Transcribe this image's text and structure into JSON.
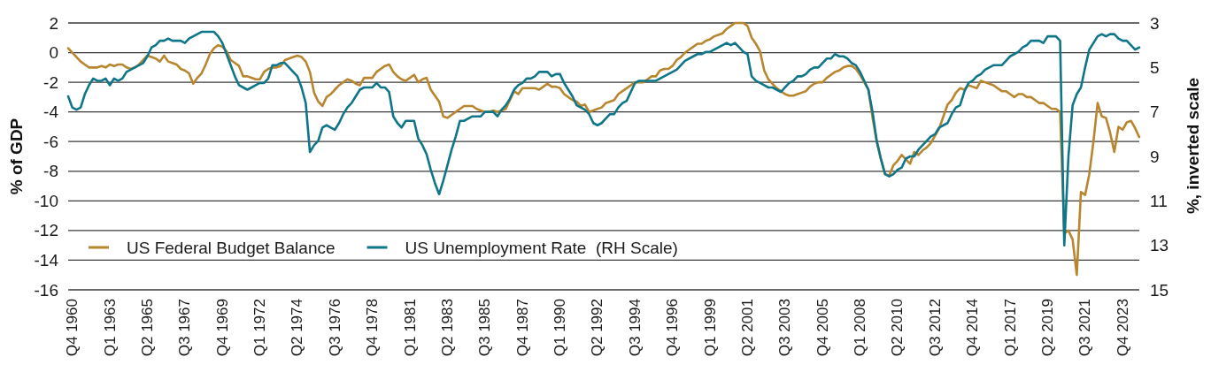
{
  "chart_data": {
    "type": "line",
    "ylabel": "% of GDP",
    "y2label": "%, inverted scale",
    "categories": [
      null,
      "Q4 1960",
      null,
      null,
      null,
      null,
      null,
      null,
      null,
      null,
      "Q1 1963",
      null,
      null,
      null,
      null,
      null,
      null,
      null,
      null,
      "Q2 1965",
      null,
      null,
      null,
      null,
      null,
      null,
      null,
      null,
      "Q3 1967",
      null,
      null,
      null,
      null,
      null,
      null,
      null,
      null,
      "Q4 1969",
      null,
      null,
      null,
      null,
      null,
      null,
      null,
      null,
      "Q1 1972",
      null,
      null,
      null,
      null,
      null,
      null,
      null,
      null,
      "Q2 1974",
      null,
      null,
      null,
      null,
      null,
      null,
      null,
      null,
      "Q3 1976",
      null,
      null,
      null,
      null,
      null,
      null,
      null,
      null,
      "Q4 1978",
      null,
      null,
      null,
      null,
      null,
      null,
      null,
      null,
      "Q1 1981",
      null,
      null,
      null,
      null,
      null,
      null,
      null,
      null,
      "Q2 1983",
      null,
      null,
      null,
      null,
      null,
      null,
      null,
      null,
      "Q3 1985",
      null,
      null,
      null,
      null,
      null,
      null,
      null,
      null,
      "Q4 1987",
      null,
      null,
      null,
      null,
      null,
      null,
      null,
      null,
      "Q1 1990",
      null,
      null,
      null,
      null,
      null,
      null,
      null,
      null,
      "Q2 1992",
      null,
      null,
      null,
      null,
      null,
      null,
      null,
      null,
      "Q3 1994",
      null,
      null,
      null,
      null,
      null,
      null,
      null,
      null,
      "Q4 1996",
      null,
      null,
      null,
      null,
      null,
      null,
      null,
      null,
      "Q1 1999",
      null,
      null,
      null,
      null,
      null,
      null,
      null,
      null,
      "Q2 2001",
      null,
      null,
      null,
      null,
      null,
      null,
      null,
      null,
      "Q3 2003",
      null,
      null,
      null,
      null,
      null,
      null,
      null,
      null,
      "Q4 2005",
      null,
      null,
      null,
      null,
      null,
      null,
      null,
      null,
      "Q1 2008",
      null,
      null,
      null,
      null,
      null,
      null,
      null,
      null,
      "Q2 2010",
      null,
      null,
      null,
      null,
      null,
      null,
      null,
      null,
      "Q3 2012",
      null,
      null,
      null,
      null,
      null,
      null,
      null,
      null,
      "Q4 2014",
      null,
      null,
      null,
      null,
      null,
      null,
      null,
      null,
      "Q1 2017",
      null,
      null,
      null,
      null,
      null,
      null,
      null,
      null,
      "Q2 2019",
      null,
      null,
      null,
      null,
      null,
      null,
      null,
      null,
      "Q3 2021",
      null,
      null,
      null,
      null,
      null,
      null,
      null,
      null,
      "Q4 2023",
      null,
      null,
      null,
      null
    ],
    "series": [
      {
        "name": "US Federal Budget Balance",
        "color": "#b8862f",
        "values": [
          0.3,
          0.0,
          -0.3,
          -0.6,
          -0.8,
          -1.0,
          -1.0,
          -1.0,
          -0.9,
          -1.0,
          -0.8,
          -0.9,
          -0.8,
          -0.8,
          -1.0,
          -1.1,
          -1.0,
          -0.8,
          -0.5,
          -0.2,
          -0.3,
          -0.4,
          -0.6,
          -0.2,
          -0.6,
          -0.7,
          -0.8,
          -1.1,
          -1.2,
          -1.4,
          -2.1,
          -1.7,
          -1.4,
          -0.8,
          -0.1,
          0.3,
          0.5,
          0.4,
          0.1,
          -0.5,
          -0.7,
          -0.9,
          -1.6,
          -1.6,
          -1.7,
          -1.8,
          -1.8,
          -1.3,
          -1.1,
          -1.0,
          -1.0,
          -0.9,
          -0.5,
          -0.4,
          -0.3,
          -0.2,
          -0.3,
          -0.6,
          -1.3,
          -2.7,
          -3.3,
          -3.6,
          -3.0,
          -2.8,
          -2.5,
          -2.2,
          -2.0,
          -1.8,
          -1.9,
          -2.1,
          -2.2,
          -1.7,
          -1.7,
          -1.7,
          -1.3,
          -1.1,
          -0.9,
          -0.8,
          -1.3,
          -1.6,
          -1.8,
          -1.9,
          -1.7,
          -1.5,
          -2.0,
          -1.8,
          -1.7,
          -2.5,
          -2.9,
          -3.3,
          -4.3,
          -4.4,
          -4.2,
          -4.0,
          -3.8,
          -3.6,
          -3.6,
          -3.6,
          -3.8,
          -3.9,
          -4.0,
          -4.0,
          -3.9,
          -4.0,
          -3.9,
          -3.8,
          -3.2,
          -2.6,
          -2.8,
          -2.4,
          -2.4,
          -2.4,
          -2.4,
          -2.5,
          -2.3,
          -2.1,
          -2.3,
          -2.3,
          -2.4,
          -2.8,
          -3.0,
          -3.2,
          -3.3,
          -3.6,
          -3.5,
          -4.0,
          -3.9,
          -3.8,
          -3.7,
          -3.4,
          -3.3,
          -3.2,
          -2.8,
          -2.6,
          -2.4,
          -2.2,
          -2.0,
          -2.0,
          -2.0,
          -1.8,
          -1.6,
          -1.6,
          -1.2,
          -1.1,
          -1.1,
          -0.9,
          -0.5,
          -0.3,
          0.0,
          0.2,
          0.4,
          0.6,
          0.6,
          0.8,
          0.9,
          1.1,
          1.2,
          1.3,
          1.6,
          1.8,
          2.0,
          2.0,
          2.0,
          1.8,
          1.0,
          0.6,
          0.1,
          -1.2,
          -1.8,
          -2.1,
          -2.4,
          -2.6,
          -2.8,
          -2.9,
          -2.9,
          -2.8,
          -2.7,
          -2.6,
          -2.3,
          -2.1,
          -2.0,
          -2.0,
          -1.7,
          -1.5,
          -1.3,
          -1.2,
          -1.0,
          -0.9,
          -0.9,
          -1.1,
          -1.5,
          -2.0,
          -2.5,
          -4.4,
          -6.0,
          -7.2,
          -8.2,
          -8.3,
          -7.6,
          -7.3,
          -6.9,
          -7.2,
          -7.5,
          -6.7,
          -6.9,
          -6.6,
          -6.4,
          -6.1,
          -5.6,
          -5.1,
          -4.3,
          -3.5,
          -3.2,
          -2.7,
          -2.4,
          -2.5,
          -2.2,
          -2.3,
          -2.4,
          -1.9,
          -2.0,
          -2.1,
          -2.2,
          -2.4,
          -2.6,
          -2.6,
          -2.8,
          -3.0,
          -2.8,
          -2.8,
          -3.0,
          -3.0,
          -3.2,
          -3.4,
          -3.4,
          -3.6,
          -3.8,
          -3.8,
          -4.0,
          -12.2,
          -12.0,
          -12.6,
          -15.0,
          -9.4,
          -9.6,
          -8.2,
          -6.0,
          -3.4,
          -4.3,
          -4.4,
          -5.4,
          -6.7,
          -5.0,
          -5.2,
          -4.7,
          -4.6,
          -5.1,
          -5.7
        ]
      },
      {
        "name": "US Unemployment Rate  (RH Scale)",
        "color": "#0f7689",
        "axis": "y2",
        "values": [
          6.3,
          6.8,
          6.9,
          6.8,
          6.2,
          5.8,
          5.5,
          5.6,
          5.6,
          5.5,
          5.8,
          5.5,
          5.6,
          5.5,
          5.2,
          5.1,
          5.0,
          4.9,
          4.8,
          4.5,
          4.1,
          4.0,
          3.8,
          3.8,
          3.7,
          3.8,
          3.8,
          3.8,
          3.9,
          3.7,
          3.6,
          3.5,
          3.4,
          3.4,
          3.4,
          3.4,
          3.6,
          3.9,
          4.4,
          4.9,
          5.4,
          5.8,
          5.9,
          6.0,
          5.9,
          5.8,
          5.7,
          5.7,
          5.5,
          4.9,
          4.9,
          4.8,
          4.8,
          5.0,
          5.2,
          5.4,
          5.9,
          6.6,
          8.8,
          8.5,
          8.3,
          7.7,
          7.6,
          7.7,
          7.8,
          7.5,
          7.1,
          6.8,
          6.6,
          6.3,
          6.0,
          5.9,
          5.9,
          5.9,
          5.7,
          5.9,
          5.9,
          6.1,
          7.2,
          7.5,
          7.7,
          7.4,
          7.4,
          7.4,
          8.2,
          8.5,
          8.9,
          9.6,
          10.2,
          10.7,
          10.1,
          9.4,
          8.7,
          8.1,
          7.4,
          7.4,
          7.3,
          7.2,
          7.2,
          7.2,
          7.0,
          7.0,
          7.0,
          7.2,
          6.9,
          6.7,
          6.4,
          6.0,
          5.8,
          5.7,
          5.5,
          5.5,
          5.4,
          5.2,
          5.2,
          5.2,
          5.4,
          5.3,
          5.3,
          5.7,
          6.0,
          6.3,
          6.7,
          6.8,
          6.9,
          7.1,
          7.5,
          7.6,
          7.5,
          7.3,
          7.1,
          7.1,
          6.8,
          6.6,
          6.5,
          6.1,
          5.7,
          5.6,
          5.6,
          5.6,
          5.6,
          5.6,
          5.5,
          5.4,
          5.3,
          5.2,
          5.1,
          4.9,
          4.7,
          4.6,
          4.5,
          4.4,
          4.4,
          4.3,
          4.3,
          4.2,
          4.1,
          4.0,
          3.9,
          4.0,
          3.9,
          4.1,
          4.3,
          4.4,
          5.4,
          5.6,
          5.7,
          5.8,
          5.9,
          5.9,
          6.0,
          6.1,
          5.9,
          5.7,
          5.6,
          5.4,
          5.4,
          5.3,
          5.1,
          5.0,
          5.0,
          4.8,
          4.6,
          4.6,
          4.4,
          4.5,
          4.5,
          4.6,
          4.8,
          4.9,
          5.2,
          5.6,
          6.0,
          7.0,
          8.3,
          9.1,
          9.8,
          9.9,
          9.8,
          9.6,
          9.5,
          9.1,
          9.0,
          9.0,
          8.7,
          8.5,
          8.3,
          8.1,
          8.0,
          7.7,
          7.6,
          7.5,
          7.1,
          6.8,
          6.7,
          6.1,
          5.7,
          5.6,
          5.4,
          5.3,
          5.1,
          5.0,
          4.9,
          4.9,
          4.9,
          4.7,
          4.5,
          4.4,
          4.3,
          4.1,
          4.0,
          3.8,
          3.8,
          3.8,
          3.9,
          3.6,
          3.6,
          3.6,
          3.8,
          13.0,
          9.0,
          6.7,
          6.2,
          5.9,
          5.0,
          4.2,
          3.9,
          3.6,
          3.5,
          3.6,
          3.5,
          3.5,
          3.7,
          3.8,
          3.8,
          4.0,
          4.2,
          4.1
        ]
      }
    ],
    "ylim": [
      -16,
      2
    ],
    "yticks": [
      2,
      0,
      -2,
      -4,
      -6,
      -8,
      -10,
      -12,
      -14,
      -16
    ],
    "y2lim": [
      15,
      3
    ],
    "y2ticks": [
      3,
      5,
      7,
      9,
      11,
      13,
      15
    ],
    "grid": "y",
    "legend": "bottom left"
  }
}
